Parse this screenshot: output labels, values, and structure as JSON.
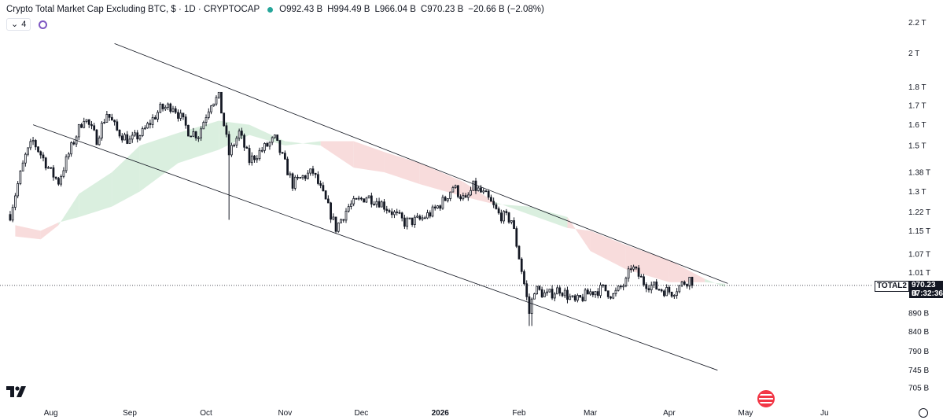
{
  "legend": {
    "title": "Crypto Total Market Cap Excluding BTC, $ · 1D · CRYPTOCAP",
    "open": "O992.43 B",
    "high": "H994.49 B",
    "low": "L966.04 B",
    "close": "C970.23 B",
    "change": "−20.66 B (−2.08%)",
    "collapse_count": "4"
  },
  "price_tag": {
    "symbol": "TOTAL2",
    "price": "970.23 B",
    "countdown": "07:32:36"
  },
  "colors": {
    "up": "#131722",
    "down": "#131722",
    "cloud_bull": "#d3ecd9",
    "cloud_bear": "#f7d6d6",
    "channel": "#131722",
    "accent": "#26a69a"
  },
  "icons": {
    "logo": "tradingview-logo-icon",
    "flag": "us-flag-icon",
    "settings": "gear-icon",
    "indicator": "indicator-circle-icon"
  },
  "chart_data": {
    "type": "candlestick",
    "title": "Crypto Total Market Cap Excluding BTC",
    "y_scale": "log",
    "y_ticks": [
      "2.2 T",
      "2 T",
      "1.8 T",
      "1.7 T",
      "1.6 T",
      "1.5 T",
      "1.38 T",
      "1.3 T",
      "1.22 T",
      "1.15 T",
      "1.07 T",
      "1.01 T",
      "890 B",
      "840 B",
      "790 B",
      "745 B",
      "705 B"
    ],
    "x_ticks": [
      "Aug",
      "Sep",
      "Oct",
      "Nov",
      "Dec",
      "2026",
      "Feb",
      "Mar",
      "Apr",
      "May",
      "Ju"
    ],
    "anchors": [
      {
        "t": "2025-07-16",
        "v": 1.21
      },
      {
        "t": "2025-07-22",
        "v": 1.45
      },
      {
        "t": "2025-07-25",
        "v": 1.52
      },
      {
        "t": "2025-08-01",
        "v": 1.38
      },
      {
        "t": "2025-08-04",
        "v": 1.34
      },
      {
        "t": "2025-08-10",
        "v": 1.52
      },
      {
        "t": "2025-08-14",
        "v": 1.64
      },
      {
        "t": "2025-08-19",
        "v": 1.53
      },
      {
        "t": "2025-08-23",
        "v": 1.66
      },
      {
        "t": "2025-08-27",
        "v": 1.57
      },
      {
        "t": "2025-09-01",
        "v": 1.52
      },
      {
        "t": "2025-09-06",
        "v": 1.56
      },
      {
        "t": "2025-09-13",
        "v": 1.68
      },
      {
        "t": "2025-09-18",
        "v": 1.7
      },
      {
        "t": "2025-09-24",
        "v": 1.57
      },
      {
        "t": "2025-09-28",
        "v": 1.55
      },
      {
        "t": "2025-10-03",
        "v": 1.72
      },
      {
        "t": "2025-10-06",
        "v": 1.74
      },
      {
        "t": "2025-10-10",
        "v": 1.46
      },
      {
        "t": "2025-10-14",
        "v": 1.56
      },
      {
        "t": "2025-10-18",
        "v": 1.43
      },
      {
        "t": "2025-10-25",
        "v": 1.5
      },
      {
        "t": "2025-10-28",
        "v": 1.53
      },
      {
        "t": "2025-11-04",
        "v": 1.33
      },
      {
        "t": "2025-11-08",
        "v": 1.36
      },
      {
        "t": "2025-11-12",
        "v": 1.38
      },
      {
        "t": "2025-11-17",
        "v": 1.26
      },
      {
        "t": "2025-11-21",
        "v": 1.16
      },
      {
        "t": "2025-11-26",
        "v": 1.24
      },
      {
        "t": "2025-12-03",
        "v": 1.28
      },
      {
        "t": "2025-12-08",
        "v": 1.26
      },
      {
        "t": "2025-12-13",
        "v": 1.22
      },
      {
        "t": "2025-12-18",
        "v": 1.18
      },
      {
        "t": "2025-12-24",
        "v": 1.19
      },
      {
        "t": "2025-12-29",
        "v": 1.22
      },
      {
        "t": "2026-01-03",
        "v": 1.27
      },
      {
        "t": "2026-01-06",
        "v": 1.32
      },
      {
        "t": "2026-01-11",
        "v": 1.26
      },
      {
        "t": "2026-01-14",
        "v": 1.32
      },
      {
        "t": "2026-01-19",
        "v": 1.28
      },
      {
        "t": "2026-01-24",
        "v": 1.21
      },
      {
        "t": "2026-01-29",
        "v": 1.19
      },
      {
        "t": "2026-02-01",
        "v": 1.06
      },
      {
        "t": "2026-02-05",
        "v": 0.89
      },
      {
        "t": "2026-02-07",
        "v": 0.96
      },
      {
        "t": "2026-02-12",
        "v": 0.94
      },
      {
        "t": "2026-02-17",
        "v": 0.96
      },
      {
        "t": "2026-02-23",
        "v": 0.92
      },
      {
        "t": "2026-03-01",
        "v": 0.95
      },
      {
        "t": "2026-03-06",
        "v": 0.96
      },
      {
        "t": "2026-03-10",
        "v": 0.94
      },
      {
        "t": "2026-03-15",
        "v": 0.98
      },
      {
        "t": "2026-03-17",
        "v": 1.03
      },
      {
        "t": "2026-03-22",
        "v": 0.98
      },
      {
        "t": "2026-03-28",
        "v": 0.96
      },
      {
        "t": "2026-04-02",
        "v": 0.95
      },
      {
        "t": "2026-04-07",
        "v": 0.98
      },
      {
        "t": "2026-04-09",
        "v": 0.99
      },
      {
        "t": "2026-04-10",
        "v": 0.97
      }
    ],
    "ichimoku_cloud": [
      {
        "t": "2025-07-18",
        "a": 1.13,
        "b": 1.17
      },
      {
        "t": "2025-07-28",
        "a": 1.12,
        "b": 1.15
      },
      {
        "t": "2025-08-04",
        "a": 1.17,
        "b": 1.18
      },
      {
        "t": "2025-08-12",
        "a": 1.29,
        "b": 1.2
      },
      {
        "t": "2025-08-25",
        "a": 1.38,
        "b": 1.24
      },
      {
        "t": "2025-09-05",
        "a": 1.5,
        "b": 1.3
      },
      {
        "t": "2025-09-20",
        "a": 1.56,
        "b": 1.42
      },
      {
        "t": "2025-10-06",
        "a": 1.62,
        "b": 1.48
      },
      {
        "t": "2025-10-18",
        "a": 1.6,
        "b": 1.55
      },
      {
        "t": "2025-11-01",
        "a": 1.52,
        "b": 1.5
      },
      {
        "t": "2025-11-15",
        "a": 1.5,
        "b": 1.52
      },
      {
        "t": "2025-11-28",
        "a": 1.4,
        "b": 1.52
      },
      {
        "t": "2025-12-10",
        "a": 1.38,
        "b": 1.47
      },
      {
        "t": "2025-12-24",
        "a": 1.33,
        "b": 1.42
      },
      {
        "t": "2026-01-10",
        "a": 1.28,
        "b": 1.34
      },
      {
        "t": "2026-01-22",
        "a": 1.25,
        "b": 1.26
      },
      {
        "t": "2026-02-05",
        "a": 1.24,
        "b": 1.21
      },
      {
        "t": "2026-02-20",
        "a": 1.2,
        "b": 1.16
      },
      {
        "t": "2026-03-01",
        "a": 1.08,
        "b": 1.15
      },
      {
        "t": "2026-03-15",
        "a": 1.02,
        "b": 1.1
      },
      {
        "t": "2026-04-01",
        "a": 0.98,
        "b": 1.05
      },
      {
        "t": "2026-04-15",
        "a": 0.98,
        "b": 0.99
      },
      {
        "t": "2026-04-23",
        "a": 0.975,
        "b": 0.965
      }
    ],
    "channel_upper": [
      {
        "t": "2025-08-26",
        "v": 2.06
      },
      {
        "t": "2026-04-24",
        "v": 0.976
      }
    ],
    "channel_lower": [
      {
        "t": "2025-07-25",
        "v": 1.6
      },
      {
        "t": "2026-04-20",
        "v": 0.745
      }
    ],
    "last_price": 0.97023,
    "x_range": [
      "2025-07-12",
      "2026-06-17"
    ],
    "y_range": [
      0.69,
      2.28
    ]
  }
}
